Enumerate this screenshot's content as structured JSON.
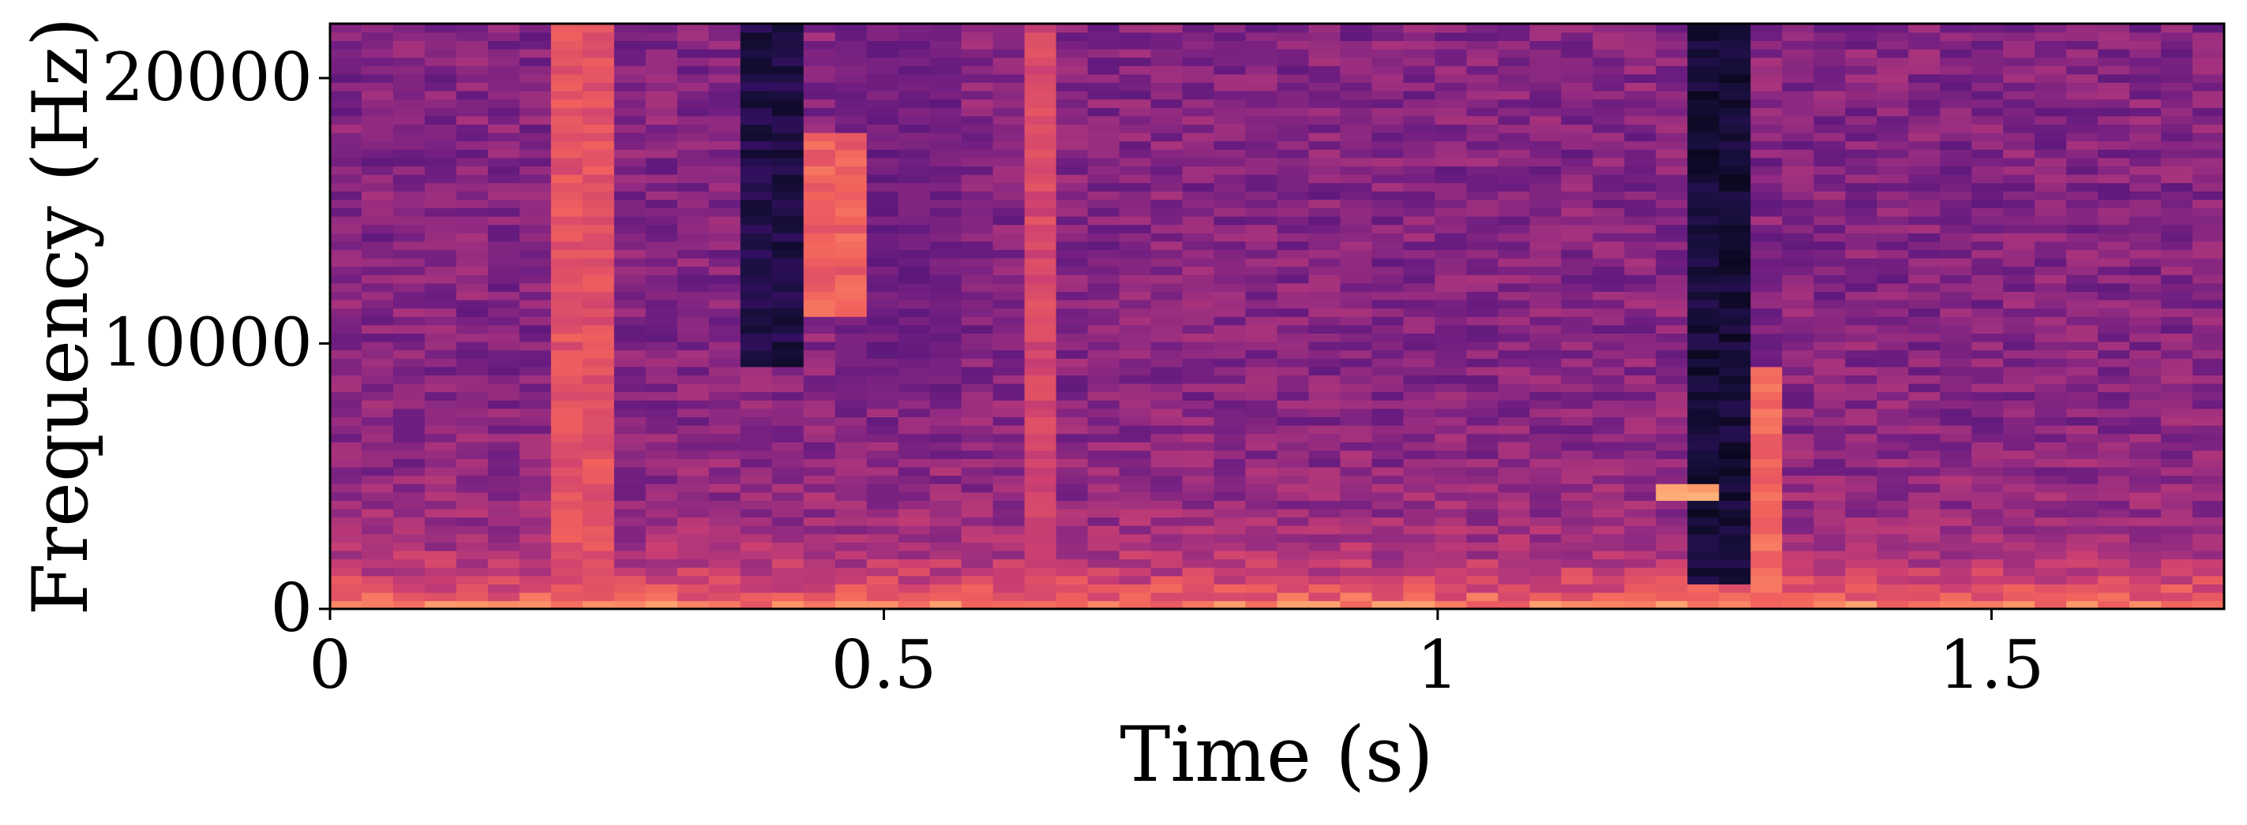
{
  "chart_data": {
    "type": "heatmap",
    "subtype": "spectrogram",
    "title": "",
    "xlabel": "Time (s)",
    "ylabel": "Frequency (Hz)",
    "xlim": [
      0,
      1.71
    ],
    "ylim": [
      0,
      22050
    ],
    "xticks": [
      0,
      0.5,
      1,
      1.5
    ],
    "xtick_labels": [
      "0",
      "0.5",
      "1",
      "1.5"
    ],
    "yticks": [
      0,
      10000,
      20000
    ],
    "ytick_labels": [
      "0",
      "10000",
      "20000"
    ],
    "colormap": "magma",
    "colormap_stops": [
      "#000004",
      "#180f3d",
      "#440f76",
      "#721f81",
      "#9e2f7f",
      "#cd4071",
      "#f1605d",
      "#fd9668",
      "#feca8d",
      "#fcfdbf"
    ],
    "grid": false,
    "legend": "none",
    "time_bins": 60,
    "frequency_bins": 70,
    "dark_regions": [
      {
        "t_start": 0.36,
        "t_end": 0.42,
        "f_start": 9000,
        "f_end": 22050,
        "level": 0.08
      },
      {
        "t_start": 1.22,
        "t_end": 1.28,
        "f_start": 1000,
        "f_end": 22050,
        "level": 0.05
      },
      {
        "t_start": 0.47,
        "t_end": 0.56,
        "f_start": 8000,
        "f_end": 22050,
        "level": 0.28
      }
    ],
    "bright_regions": [
      {
        "t_start": 0.21,
        "t_end": 0.26,
        "f_start": 0,
        "f_end": 22050,
        "level": 0.62
      },
      {
        "t_start": 0.43,
        "t_end": 0.48,
        "f_start": 11000,
        "f_end": 18000,
        "level": 0.66
      },
      {
        "t_start": 0.63,
        "t_end": 0.66,
        "f_start": 0,
        "f_end": 22050,
        "level": 0.58
      },
      {
        "t_start": 1.19,
        "t_end": 1.24,
        "f_start": 4000,
        "f_end": 4600,
        "level": 0.82
      },
      {
        "t_start": 1.28,
        "t_end": 1.32,
        "f_start": 0,
        "f_end": 9000,
        "level": 0.68
      }
    ]
  }
}
